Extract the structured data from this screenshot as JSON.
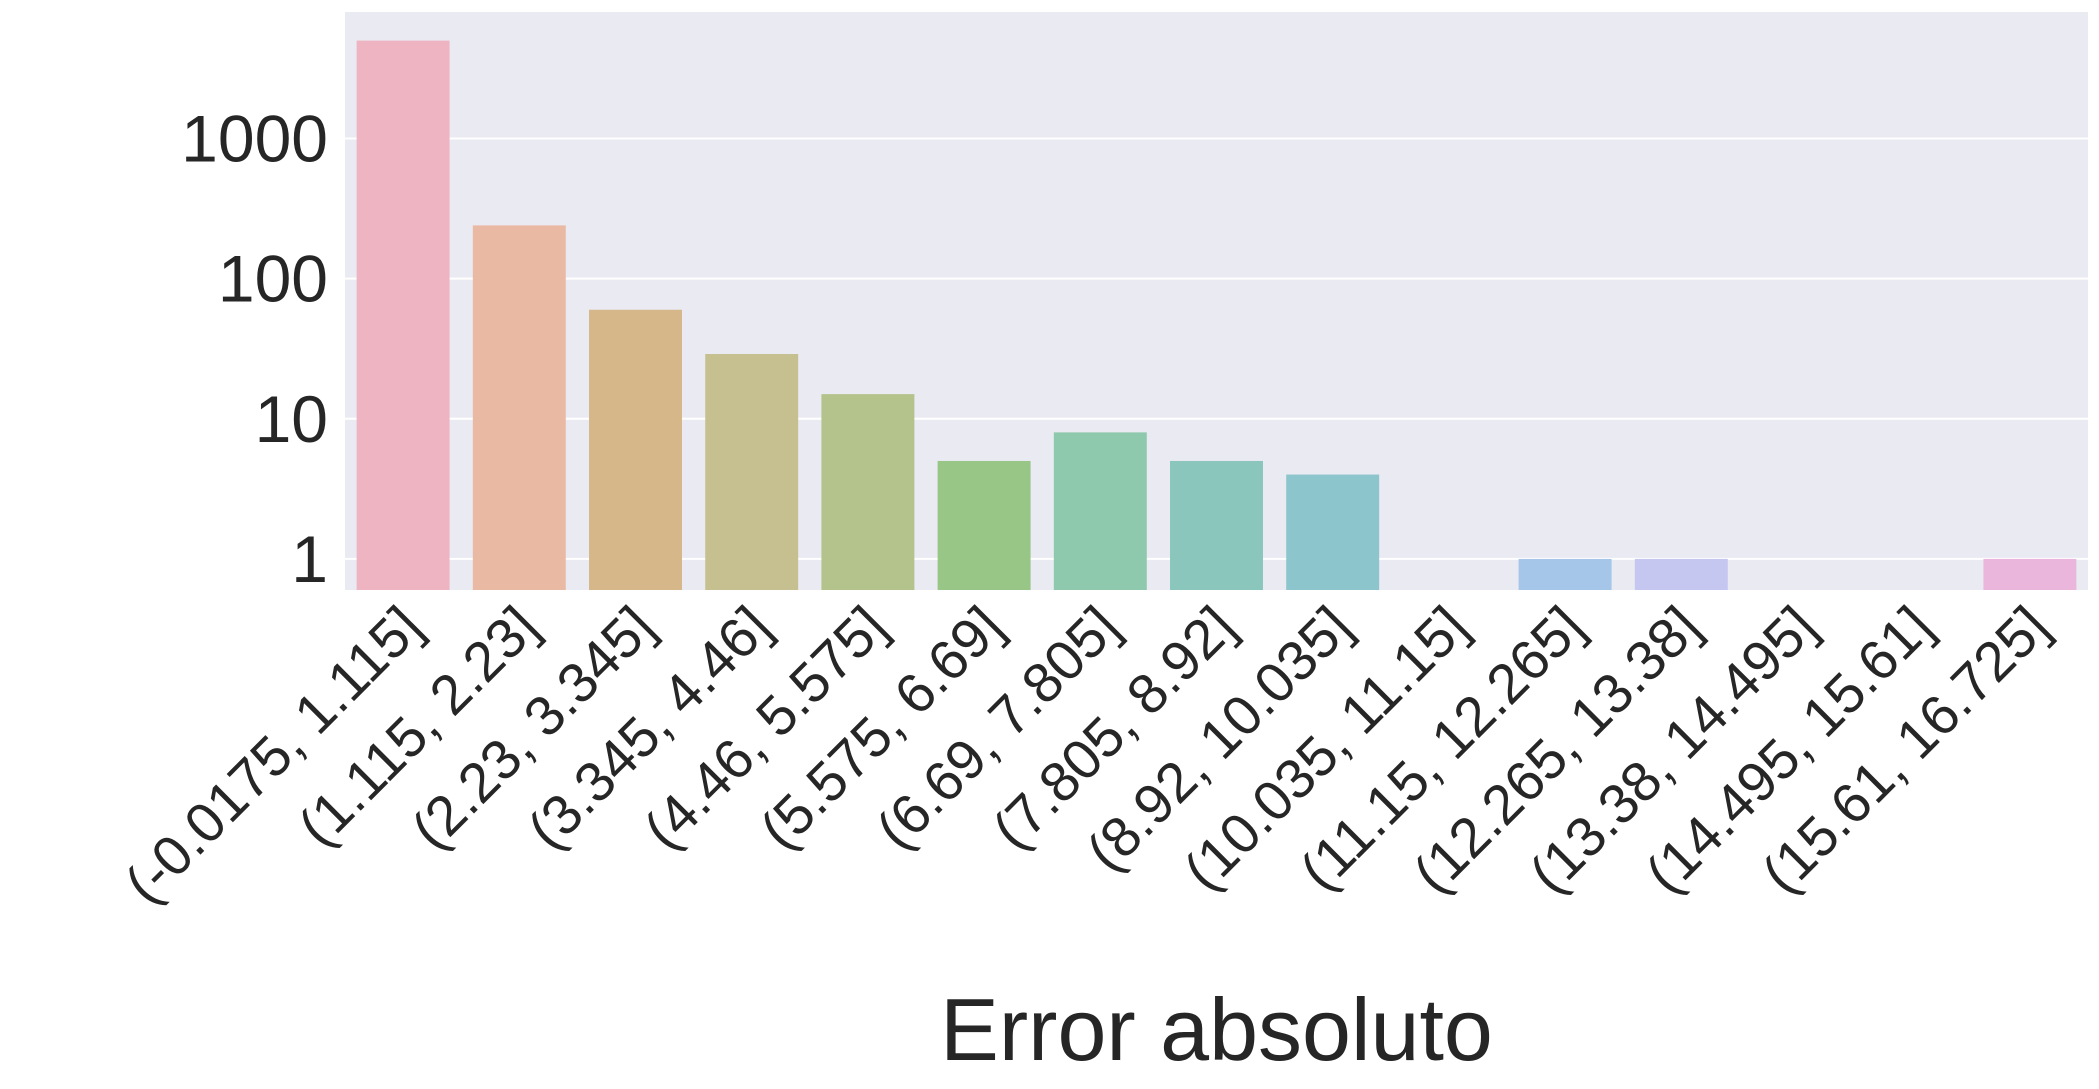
{
  "chart_data": {
    "type": "bar",
    "title": "",
    "xlabel": "Error absoluto",
    "ylabel": "",
    "yscale": "log",
    "ylim": [
      0.6,
      8000
    ],
    "grid": true,
    "yticks": [
      1,
      10,
      100,
      1000
    ],
    "ytick_labels": [
      "1",
      "10",
      "100",
      "1000"
    ],
    "categories": [
      "(-0.0175, 1.115]",
      "(1.115, 2.23]",
      "(2.23, 3.345]",
      "(3.345, 4.46]",
      "(4.46, 5.575]",
      "(5.575, 6.69]",
      "(6.69, 7.805]",
      "(7.805, 8.92]",
      "(8.92, 10.035]",
      "(10.035, 11.15]",
      "(11.15, 12.265]",
      "(12.265, 13.38]",
      "(13.38, 14.495]",
      "(14.495, 15.61]",
      "(15.61, 16.725]"
    ],
    "values": [
      5000,
      240,
      60,
      29,
      15,
      5,
      8,
      5,
      4,
      0,
      1,
      1,
      0,
      0,
      1
    ],
    "colors": [
      "#eeb4c1",
      "#eab9a4",
      "#d6b78a",
      "#c6c090",
      "#b4c38b",
      "#97c686",
      "#8ec9ad",
      "#8ac6bc",
      "#8cc5cb",
      "#8ec3d6",
      "#a5c6e8",
      "#c5c7f1",
      "#d6c2ef",
      "#e4bfe8",
      "#ebb6dc"
    ],
    "plot_background": "#eaeaf2",
    "grid_color": "#ffffff"
  }
}
